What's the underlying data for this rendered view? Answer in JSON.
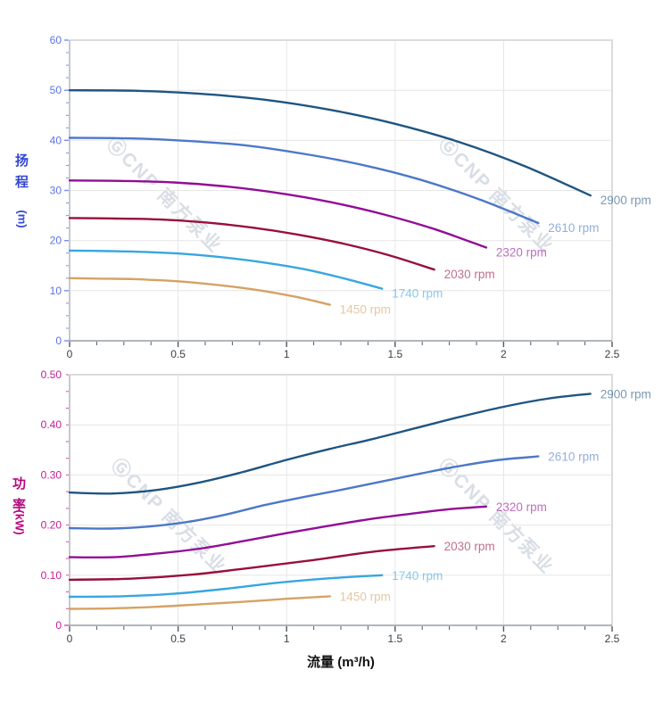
{
  "watermark": {
    "text": "ⒼCNP 南方泵业",
    "color": "#cdd4dd"
  },
  "palette": {
    "gridline": "#e6e6e6",
    "plot_border": "#dcdcdc",
    "y_axis_line": "#b4b8bf",
    "x_axis_line": "#979da4",
    "x_tick": "#53575c",
    "x_tick_label": "#3c3f43"
  },
  "chart_data": [
    {
      "type": "line",
      "name": "head-vs-flow",
      "y_axis": {
        "title_main": "扬程",
        "title_unit": "(m)",
        "title_color": "#3347d1",
        "tick_label_color": "#5a73e8",
        "tick_color": "#7b8ce8",
        "max": 60,
        "major_step": 10,
        "minor_step": 2.5,
        "tick_labels": [
          "0",
          "10",
          "20",
          "30",
          "40",
          "50",
          "60"
        ]
      },
      "x_axis": {
        "max": 2.5,
        "major_step": 0.5,
        "minor_step": 0.125,
        "tick_labels": [
          "0",
          "0.5",
          "1",
          "1.5",
          "2",
          "2.5"
        ]
      },
      "series": [
        {
          "name": "2900 rpm",
          "color": "#1f5582",
          "points": [
            [
              0,
              50
            ],
            [
              0.3,
              49.9
            ],
            [
              0.6,
              49.3
            ],
            [
              0.9,
              48.1
            ],
            [
              1.2,
              46.1
            ],
            [
              1.5,
              43.3
            ],
            [
              1.8,
              39.6
            ],
            [
              2.1,
              34.8
            ],
            [
              2.4,
              29.0
            ]
          ]
        },
        {
          "name": "2610 rpm",
          "color": "#4c78c8",
          "points": [
            [
              0,
              40.5
            ],
            [
              0.27,
              40.4
            ],
            [
              0.54,
              39.9
            ],
            [
              0.81,
              39.0
            ],
            [
              1.08,
              37.3
            ],
            [
              1.35,
              35.1
            ],
            [
              1.62,
              32.1
            ],
            [
              1.89,
              28.2
            ],
            [
              2.16,
              23.5
            ]
          ]
        },
        {
          "name": "2320 rpm",
          "color": "#920d96",
          "points": [
            [
              0,
              32
            ],
            [
              0.24,
              31.9
            ],
            [
              0.48,
              31.6
            ],
            [
              0.72,
              30.8
            ],
            [
              0.96,
              29.5
            ],
            [
              1.2,
              27.7
            ],
            [
              1.44,
              25.3
            ],
            [
              1.68,
              22.3
            ],
            [
              1.92,
              18.6
            ]
          ]
        },
        {
          "name": "2030 rpm",
          "color": "#97103a",
          "points": [
            [
              0,
              24.5
            ],
            [
              0.21,
              24.4
            ],
            [
              0.42,
              24.2
            ],
            [
              0.63,
              23.6
            ],
            [
              0.84,
              22.6
            ],
            [
              1.05,
              21.2
            ],
            [
              1.26,
              19.4
            ],
            [
              1.47,
              17.1
            ],
            [
              1.68,
              14.2
            ]
          ]
        },
        {
          "name": "1740 rpm",
          "color": "#38a6e0",
          "points": [
            [
              0,
              18
            ],
            [
              0.18,
              17.9
            ],
            [
              0.36,
              17.7
            ],
            [
              0.54,
              17.3
            ],
            [
              0.72,
              16.6
            ],
            [
              0.9,
              15.6
            ],
            [
              1.08,
              14.3
            ],
            [
              1.26,
              12.5
            ],
            [
              1.44,
              10.4
            ]
          ]
        },
        {
          "name": "1450 rpm",
          "color": "#d5a264",
          "points": [
            [
              0,
              12.5
            ],
            [
              0.15,
              12.4
            ],
            [
              0.3,
              12.3
            ],
            [
              0.45,
              12.0
            ],
            [
              0.6,
              11.5
            ],
            [
              0.75,
              10.8
            ],
            [
              0.9,
              9.9
            ],
            [
              1.05,
              8.7
            ],
            [
              1.2,
              7.2
            ]
          ]
        }
      ]
    },
    {
      "type": "line",
      "name": "power-vs-flow",
      "y_axis": {
        "title_main": "功率",
        "title_unit": "(kW)",
        "title_color": "#b5087f",
        "tick_label_color": "#c41d94",
        "tick_color": "#d04aac",
        "max": 0.5,
        "major_step": 0.1,
        "minor_step": 0.03333,
        "tick_labels": [
          "0",
          "0.10",
          "0.20",
          "0.30",
          "0.40",
          "0.50"
        ]
      },
      "x_axis": {
        "title": "流量 (m³/h)",
        "max": 2.5,
        "major_step": 0.5,
        "minor_step": 0.125,
        "tick_labels": [
          "0",
          "0.5",
          "1",
          "1.5",
          "2",
          "2.5"
        ]
      },
      "series": [
        {
          "name": "2900 rpm",
          "color": "#1f5582",
          "points": [
            [
              0,
              0.265
            ],
            [
              0.2,
              0.263
            ],
            [
              0.4,
              0.27
            ],
            [
              0.6,
              0.285
            ],
            [
              0.8,
              0.306
            ],
            [
              1.0,
              0.33
            ],
            [
              1.2,
              0.352
            ],
            [
              1.4,
              0.372
            ],
            [
              1.6,
              0.394
            ],
            [
              1.8,
              0.416
            ],
            [
              2.0,
              0.436
            ],
            [
              2.2,
              0.452
            ],
            [
              2.4,
              0.462
            ]
          ]
        },
        {
          "name": "2610 rpm",
          "color": "#4c78c8",
          "points": [
            [
              0,
              0.194
            ],
            [
              0.18,
              0.193
            ],
            [
              0.36,
              0.197
            ],
            [
              0.54,
              0.206
            ],
            [
              0.72,
              0.221
            ],
            [
              0.9,
              0.24
            ],
            [
              1.08,
              0.256
            ],
            [
              1.26,
              0.271
            ],
            [
              1.44,
              0.287
            ],
            [
              1.62,
              0.303
            ],
            [
              1.8,
              0.318
            ],
            [
              1.98,
              0.33
            ],
            [
              2.16,
              0.337
            ]
          ]
        },
        {
          "name": "2320 rpm",
          "color": "#920d96",
          "points": [
            [
              0,
              0.136
            ],
            [
              0.2,
              0.136
            ],
            [
              0.4,
              0.143
            ],
            [
              0.6,
              0.153
            ],
            [
              0.8,
              0.168
            ],
            [
              1.0,
              0.184
            ],
            [
              1.2,
              0.199
            ],
            [
              1.4,
              0.213
            ],
            [
              1.6,
              0.224
            ],
            [
              1.76,
              0.232
            ],
            [
              1.92,
              0.237
            ]
          ]
        },
        {
          "name": "2030 rpm",
          "color": "#97103a",
          "points": [
            [
              0,
              0.091
            ],
            [
              0.28,
              0.093
            ],
            [
              0.56,
              0.101
            ],
            [
              0.84,
              0.115
            ],
            [
              1.12,
              0.13
            ],
            [
              1.4,
              0.147
            ],
            [
              1.68,
              0.158
            ]
          ]
        },
        {
          "name": "1740 rpm",
          "color": "#38a6e0",
          "points": [
            [
              0,
              0.057
            ],
            [
              0.24,
              0.058
            ],
            [
              0.48,
              0.063
            ],
            [
              0.72,
              0.073
            ],
            [
              0.96,
              0.085
            ],
            [
              1.2,
              0.094
            ],
            [
              1.44,
              0.1
            ]
          ]
        },
        {
          "name": "1450 rpm",
          "color": "#d5a264",
          "points": [
            [
              0,
              0.033
            ],
            [
              0.2,
              0.034
            ],
            [
              0.4,
              0.037
            ],
            [
              0.6,
              0.042
            ],
            [
              0.8,
              0.047
            ],
            [
              1.0,
              0.053
            ],
            [
              1.2,
              0.058
            ]
          ]
        }
      ]
    }
  ]
}
